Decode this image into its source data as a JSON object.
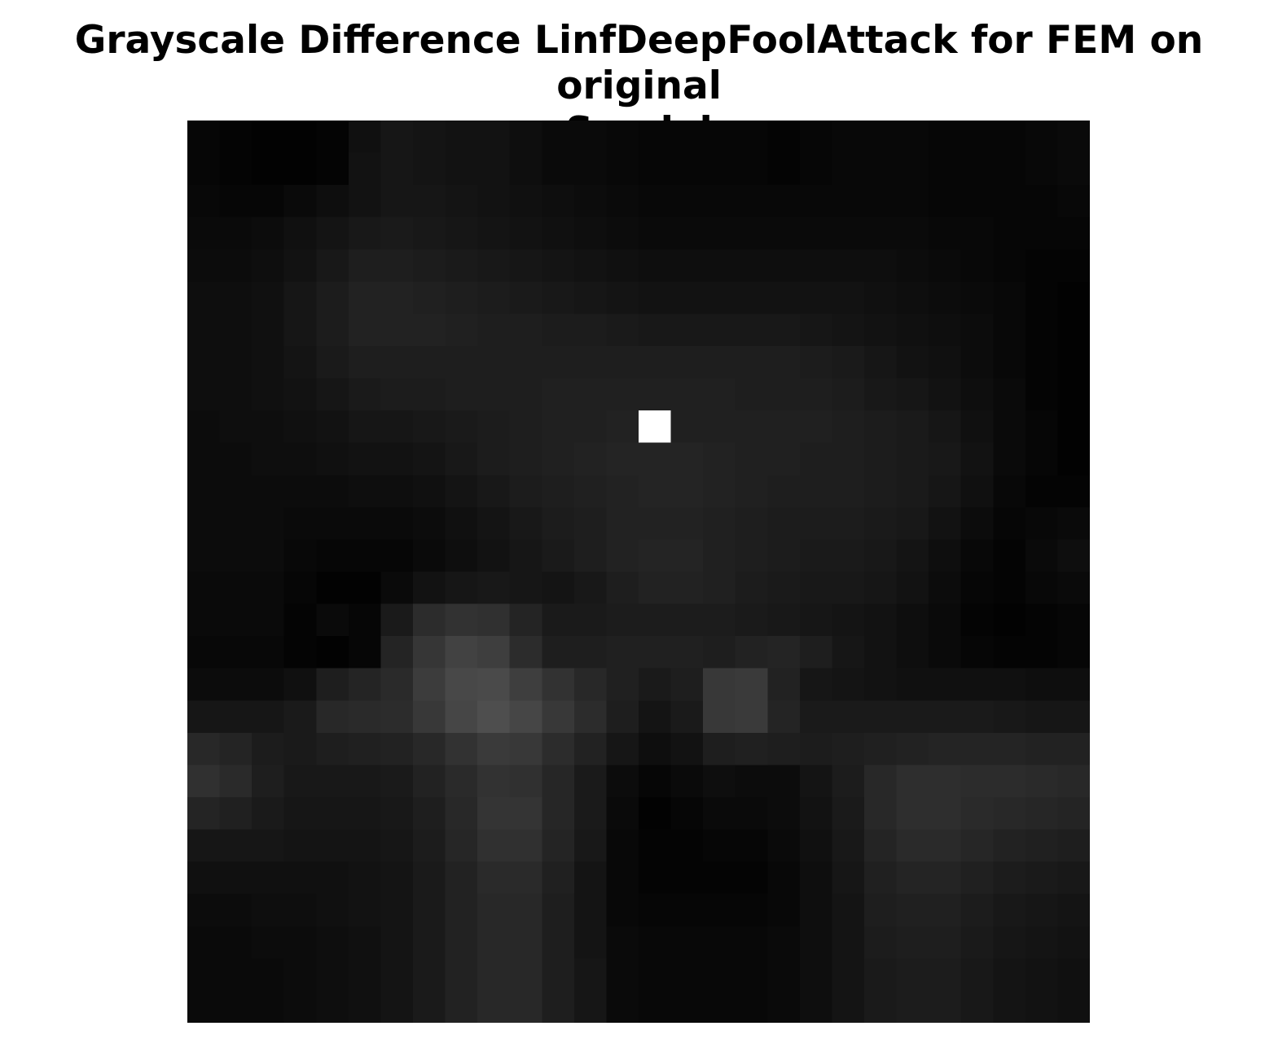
{
  "chart_data": {
    "type": "heatmap",
    "title_lines": [
      "Grayscale Difference LinfDeepFoolAttack for FEM on original",
      "Sandal"
    ],
    "xlabel": "",
    "ylabel": "",
    "axes_visible": false,
    "colormap": "gray",
    "vmin": 0,
    "vmax": 255,
    "rows": 28,
    "cols": 28,
    "values": [
      [
        6,
        4,
        2,
        2,
        4,
        16,
        22,
        20,
        18,
        18,
        14,
        10,
        10,
        8,
        6,
        6,
        6,
        6,
        4,
        6,
        8,
        8,
        8,
        6,
        6,
        6,
        8,
        10
      ],
      [
        6,
        4,
        2,
        2,
        4,
        18,
        22,
        20,
        18,
        18,
        14,
        10,
        10,
        8,
        6,
        6,
        6,
        6,
        4,
        6,
        8,
        8,
        8,
        6,
        6,
        6,
        8,
        10
      ],
      [
        8,
        6,
        6,
        10,
        14,
        18,
        22,
        22,
        20,
        18,
        16,
        14,
        12,
        10,
        8,
        8,
        8,
        8,
        8,
        8,
        8,
        8,
        8,
        6,
        6,
        6,
        6,
        8
      ],
      [
        10,
        10,
        12,
        16,
        20,
        24,
        26,
        24,
        22,
        20,
        18,
        16,
        14,
        12,
        10,
        10,
        10,
        10,
        10,
        10,
        10,
        10,
        10,
        8,
        8,
        6,
        6,
        6
      ],
      [
        12,
        12,
        14,
        18,
        24,
        30,
        30,
        28,
        26,
        24,
        22,
        20,
        18,
        16,
        14,
        14,
        14,
        14,
        14,
        14,
        14,
        14,
        12,
        10,
        8,
        6,
        4,
        4
      ],
      [
        14,
        14,
        16,
        22,
        28,
        34,
        34,
        32,
        30,
        28,
        26,
        24,
        22,
        20,
        18,
        18,
        18,
        18,
        18,
        18,
        18,
        16,
        14,
        12,
        10,
        8,
        4,
        2
      ],
      [
        14,
        14,
        16,
        22,
        28,
        34,
        34,
        34,
        32,
        30,
        30,
        28,
        28,
        26,
        24,
        24,
        24,
        24,
        24,
        22,
        20,
        18,
        16,
        14,
        12,
        8,
        4,
        2
      ],
      [
        14,
        14,
        16,
        20,
        26,
        30,
        30,
        30,
        30,
        30,
        30,
        30,
        30,
        30,
        30,
        30,
        30,
        30,
        30,
        28,
        26,
        22,
        18,
        16,
        12,
        8,
        4,
        2
      ],
      [
        14,
        14,
        16,
        18,
        22,
        26,
        28,
        28,
        30,
        30,
        30,
        32,
        32,
        32,
        32,
        32,
        32,
        30,
        30,
        30,
        28,
        24,
        22,
        18,
        14,
        10,
        4,
        2
      ],
      [
        12,
        14,
        14,
        16,
        18,
        22,
        22,
        24,
        26,
        28,
        30,
        32,
        32,
        34,
        255,
        32,
        32,
        32,
        32,
        32,
        30,
        28,
        26,
        22,
        16,
        10,
        6,
        2
      ],
      [
        12,
        12,
        14,
        14,
        16,
        18,
        18,
        20,
        24,
        28,
        30,
        32,
        34,
        36,
        36,
        36,
        34,
        32,
        32,
        30,
        30,
        28,
        26,
        24,
        18,
        10,
        6,
        2
      ],
      [
        12,
        12,
        12,
        12,
        12,
        14,
        14,
        16,
        20,
        24,
        28,
        30,
        32,
        34,
        36,
        36,
        34,
        32,
        30,
        30,
        30,
        28,
        26,
        22,
        16,
        8,
        4,
        4
      ],
      [
        12,
        12,
        12,
        10,
        10,
        10,
        10,
        12,
        16,
        20,
        24,
        28,
        30,
        34,
        34,
        34,
        32,
        30,
        28,
        28,
        28,
        26,
        24,
        18,
        12,
        6,
        8,
        10
      ],
      [
        12,
        12,
        12,
        8,
        6,
        6,
        6,
        10,
        14,
        18,
        22,
        26,
        30,
        34,
        36,
        36,
        32,
        30,
        28,
        26,
        26,
        24,
        20,
        14,
        8,
        4,
        10,
        14
      ],
      [
        10,
        10,
        10,
        6,
        2,
        2,
        10,
        18,
        22,
        24,
        22,
        20,
        24,
        30,
        34,
        34,
        32,
        28,
        26,
        24,
        24,
        22,
        18,
        12,
        6,
        4,
        8,
        10
      ],
      [
        10,
        10,
        10,
        4,
        10,
        6,
        26,
        44,
        50,
        48,
        36,
        26,
        26,
        28,
        28,
        28,
        28,
        26,
        24,
        22,
        20,
        18,
        14,
        10,
        4,
        2,
        4,
        6
      ],
      [
        8,
        8,
        8,
        4,
        2,
        6,
        36,
        54,
        66,
        62,
        44,
        30,
        30,
        32,
        32,
        32,
        30,
        34,
        36,
        30,
        22,
        18,
        14,
        10,
        6,
        4,
        4,
        6
      ],
      [
        12,
        12,
        12,
        16,
        30,
        36,
        42,
        60,
        72,
        74,
        62,
        50,
        40,
        32,
        26,
        30,
        56,
        58,
        34,
        22,
        20,
        18,
        16,
        16,
        16,
        16,
        14,
        14
      ],
      [
        22,
        22,
        22,
        26,
        40,
        42,
        44,
        56,
        70,
        78,
        70,
        56,
        44,
        30,
        20,
        26,
        56,
        58,
        36,
        26,
        26,
        26,
        26,
        26,
        26,
        24,
        22,
        22
      ],
      [
        40,
        36,
        28,
        26,
        30,
        32,
        34,
        40,
        50,
        58,
        56,
        44,
        34,
        22,
        14,
        18,
        30,
        32,
        30,
        28,
        30,
        32,
        34,
        36,
        36,
        36,
        34,
        34
      ],
      [
        48,
        42,
        30,
        24,
        24,
        24,
        26,
        34,
        42,
        50,
        48,
        38,
        26,
        12,
        6,
        10,
        14,
        12,
        12,
        20,
        28,
        40,
        46,
        46,
        44,
        44,
        42,
        40
      ],
      [
        36,
        32,
        26,
        22,
        22,
        22,
        24,
        30,
        40,
        52,
        52,
        38,
        26,
        10,
        2,
        6,
        10,
        10,
        12,
        18,
        26,
        40,
        46,
        46,
        42,
        40,
        38,
        36
      ],
      [
        22,
        22,
        22,
        20,
        20,
        20,
        22,
        28,
        38,
        48,
        48,
        36,
        24,
        8,
        4,
        4,
        6,
        6,
        10,
        16,
        24,
        36,
        42,
        42,
        38,
        34,
        32,
        30
      ],
      [
        16,
        16,
        16,
        16,
        16,
        18,
        20,
        26,
        34,
        42,
        42,
        32,
        20,
        8,
        4,
        4,
        4,
        4,
        8,
        14,
        22,
        32,
        36,
        36,
        32,
        28,
        26,
        24
      ],
      [
        12,
        12,
        14,
        14,
        16,
        18,
        20,
        26,
        34,
        40,
        40,
        30,
        20,
        8,
        6,
        6,
        6,
        6,
        8,
        14,
        20,
        30,
        32,
        32,
        28,
        24,
        22,
        20
      ],
      [
        10,
        10,
        12,
        12,
        14,
        16,
        20,
        26,
        34,
        40,
        40,
        30,
        20,
        10,
        8,
        8,
        8,
        8,
        10,
        14,
        20,
        28,
        30,
        30,
        26,
        22,
        20,
        18
      ],
      [
        10,
        10,
        10,
        12,
        14,
        16,
        20,
        26,
        34,
        40,
        40,
        30,
        22,
        10,
        8,
        8,
        8,
        8,
        10,
        14,
        20,
        26,
        28,
        28,
        24,
        20,
        18,
        16
      ],
      [
        10,
        10,
        10,
        12,
        14,
        16,
        20,
        26,
        34,
        40,
        40,
        30,
        22,
        10,
        8,
        8,
        8,
        8,
        10,
        14,
        20,
        26,
        28,
        28,
        24,
        20,
        18,
        16
      ]
    ]
  }
}
